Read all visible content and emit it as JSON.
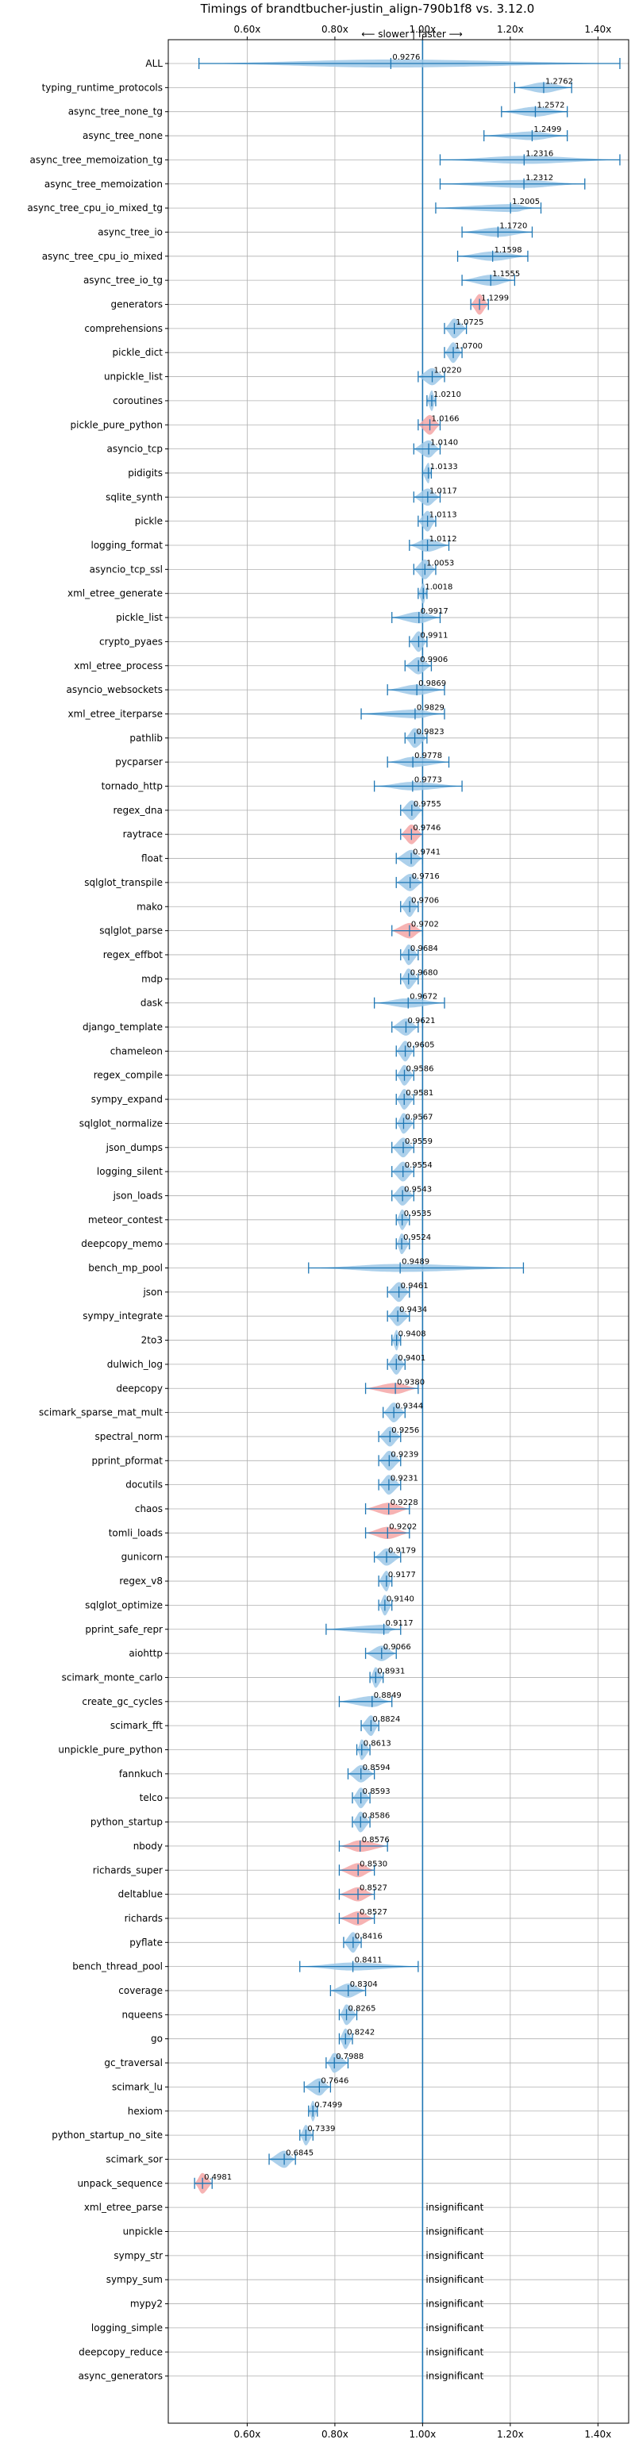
{
  "chart_data": {
    "type": "violin",
    "title": "Timings of brandtbucher-justin_align-790b1f8 vs. 3.12.0",
    "direction_label": "⟵ slower | faster ⟶",
    "xlim": [
      0.42,
      1.47
    ],
    "x_ticks": [
      0.6,
      0.8,
      1.0,
      1.2,
      1.4
    ],
    "x_tick_labels": [
      "0.60x",
      "0.80x",
      "1.00x",
      "1.20x",
      "1.40x"
    ],
    "reference_line": 1.0,
    "grid": true,
    "colors": {
      "violin": "#9ec8e8",
      "violin_slower": "#f4a6a6",
      "bar": "#1f77b4",
      "axis_line": "#1f77b4"
    },
    "insignificant_label": "insignificant",
    "benchmarks": [
      {
        "name": "ALL",
        "mean": 0.9276,
        "lo": 0.49,
        "hi": 1.45,
        "color": "blue",
        "label": "0.9276"
      },
      {
        "name": "typing_runtime_protocols",
        "mean": 1.2762,
        "lo": 1.21,
        "hi": 1.34,
        "color": "blue",
        "label": "1.2762"
      },
      {
        "name": "async_tree_none_tg",
        "mean": 1.2572,
        "lo": 1.18,
        "hi": 1.33,
        "color": "blue",
        "label": "1.2572"
      },
      {
        "name": "async_tree_none",
        "mean": 1.2499,
        "lo": 1.14,
        "hi": 1.33,
        "color": "blue",
        "label": "1.2499"
      },
      {
        "name": "async_tree_memoization_tg",
        "mean": 1.2316,
        "lo": 1.04,
        "hi": 1.45,
        "color": "blue",
        "label": "1.2316"
      },
      {
        "name": "async_tree_memoization",
        "mean": 1.2312,
        "lo": 1.04,
        "hi": 1.37,
        "color": "blue",
        "label": "1.2312"
      },
      {
        "name": "async_tree_cpu_io_mixed_tg",
        "mean": 1.2005,
        "lo": 1.03,
        "hi": 1.27,
        "color": "blue",
        "label": "1.2005"
      },
      {
        "name": "async_tree_io",
        "mean": 1.172,
        "lo": 1.09,
        "hi": 1.25,
        "color": "blue",
        "label": "1.1720"
      },
      {
        "name": "async_tree_cpu_io_mixed",
        "mean": 1.1598,
        "lo": 1.08,
        "hi": 1.24,
        "color": "blue",
        "label": "1.1598"
      },
      {
        "name": "async_tree_io_tg",
        "mean": 1.1555,
        "lo": 1.09,
        "hi": 1.21,
        "color": "blue",
        "label": "1.1555"
      },
      {
        "name": "generators",
        "mean": 1.1299,
        "lo": 1.11,
        "hi": 1.15,
        "color": "red",
        "label": "1.1299"
      },
      {
        "name": "comprehensions",
        "mean": 1.0725,
        "lo": 1.05,
        "hi": 1.1,
        "color": "blue",
        "label": "1.0725"
      },
      {
        "name": "pickle_dict",
        "mean": 1.07,
        "lo": 1.05,
        "hi": 1.09,
        "color": "blue",
        "label": "1.0700"
      },
      {
        "name": "unpickle_list",
        "mean": 1.022,
        "lo": 0.99,
        "hi": 1.05,
        "color": "blue",
        "label": "1.0220"
      },
      {
        "name": "coroutines",
        "mean": 1.021,
        "lo": 1.01,
        "hi": 1.03,
        "color": "blue",
        "label": "1.0210"
      },
      {
        "name": "pickle_pure_python",
        "mean": 1.0166,
        "lo": 0.99,
        "hi": 1.04,
        "color": "red",
        "label": "1.0166"
      },
      {
        "name": "asyncio_tcp",
        "mean": 1.014,
        "lo": 0.98,
        "hi": 1.04,
        "color": "blue",
        "label": "1.0140"
      },
      {
        "name": "pidigits",
        "mean": 1.0133,
        "lo": 1.0,
        "hi": 1.02,
        "color": "blue",
        "label": "1.0133"
      },
      {
        "name": "sqlite_synth",
        "mean": 1.0117,
        "lo": 0.98,
        "hi": 1.04,
        "color": "blue",
        "label": "1.0117"
      },
      {
        "name": "pickle",
        "mean": 1.0113,
        "lo": 0.99,
        "hi": 1.03,
        "color": "blue",
        "label": "1.0113"
      },
      {
        "name": "logging_format",
        "mean": 1.0112,
        "lo": 0.97,
        "hi": 1.06,
        "color": "blue",
        "label": "1.0112"
      },
      {
        "name": "asyncio_tcp_ssl",
        "mean": 1.0053,
        "lo": 0.98,
        "hi": 1.03,
        "color": "blue",
        "label": "1.0053"
      },
      {
        "name": "xml_etree_generate",
        "mean": 1.0018,
        "lo": 0.99,
        "hi": 1.01,
        "color": "blue",
        "label": "1.0018"
      },
      {
        "name": "pickle_list",
        "mean": 0.9917,
        "lo": 0.93,
        "hi": 1.04,
        "color": "blue",
        "label": "0.9917"
      },
      {
        "name": "crypto_pyaes",
        "mean": 0.9911,
        "lo": 0.97,
        "hi": 1.01,
        "color": "blue",
        "label": "0.9911"
      },
      {
        "name": "xml_etree_process",
        "mean": 0.9906,
        "lo": 0.96,
        "hi": 1.02,
        "color": "blue",
        "label": "0.9906"
      },
      {
        "name": "asyncio_websockets",
        "mean": 0.9869,
        "lo": 0.92,
        "hi": 1.05,
        "color": "blue",
        "label": "0.9869"
      },
      {
        "name": "xml_etree_iterparse",
        "mean": 0.9829,
        "lo": 0.86,
        "hi": 1.05,
        "color": "blue",
        "label": "0.9829"
      },
      {
        "name": "pathlib",
        "mean": 0.9823,
        "lo": 0.96,
        "hi": 1.01,
        "color": "blue",
        "label": "0.9823"
      },
      {
        "name": "pycparser",
        "mean": 0.9778,
        "lo": 0.92,
        "hi": 1.06,
        "color": "blue",
        "label": "0.9778"
      },
      {
        "name": "tornado_http",
        "mean": 0.9773,
        "lo": 0.89,
        "hi": 1.09,
        "color": "blue",
        "label": "0.9773"
      },
      {
        "name": "regex_dna",
        "mean": 0.9755,
        "lo": 0.95,
        "hi": 1.0,
        "color": "blue",
        "label": "0.9755"
      },
      {
        "name": "raytrace",
        "mean": 0.9746,
        "lo": 0.95,
        "hi": 1.0,
        "color": "red",
        "label": "0.9746"
      },
      {
        "name": "float",
        "mean": 0.9741,
        "lo": 0.94,
        "hi": 1.0,
        "color": "blue",
        "label": "0.9741"
      },
      {
        "name": "sqlglot_transpile",
        "mean": 0.9716,
        "lo": 0.94,
        "hi": 1.0,
        "color": "blue",
        "label": "0.9716"
      },
      {
        "name": "mako",
        "mean": 0.9706,
        "lo": 0.95,
        "hi": 0.99,
        "color": "blue",
        "label": "0.9706"
      },
      {
        "name": "sqlglot_parse",
        "mean": 0.9702,
        "lo": 0.93,
        "hi": 1.0,
        "color": "red",
        "label": "0.9702"
      },
      {
        "name": "regex_effbot",
        "mean": 0.9684,
        "lo": 0.95,
        "hi": 0.99,
        "color": "blue",
        "label": "0.9684"
      },
      {
        "name": "mdp",
        "mean": 0.968,
        "lo": 0.95,
        "hi": 0.99,
        "color": "blue",
        "label": "0.9680"
      },
      {
        "name": "dask",
        "mean": 0.9672,
        "lo": 0.89,
        "hi": 1.05,
        "color": "blue",
        "label": "0.9672"
      },
      {
        "name": "django_template",
        "mean": 0.9621,
        "lo": 0.93,
        "hi": 0.99,
        "color": "blue",
        "label": "0.9621"
      },
      {
        "name": "chameleon",
        "mean": 0.9605,
        "lo": 0.94,
        "hi": 0.98,
        "color": "blue",
        "label": "0.9605"
      },
      {
        "name": "regex_compile",
        "mean": 0.9586,
        "lo": 0.94,
        "hi": 0.98,
        "color": "blue",
        "label": "0.9586"
      },
      {
        "name": "sympy_expand",
        "mean": 0.9581,
        "lo": 0.94,
        "hi": 0.98,
        "color": "blue",
        "label": "0.9581"
      },
      {
        "name": "sqlglot_normalize",
        "mean": 0.9567,
        "lo": 0.94,
        "hi": 0.98,
        "color": "blue",
        "label": "0.9567"
      },
      {
        "name": "json_dumps",
        "mean": 0.9559,
        "lo": 0.93,
        "hi": 0.98,
        "color": "blue",
        "label": "0.9559"
      },
      {
        "name": "logging_silent",
        "mean": 0.9554,
        "lo": 0.93,
        "hi": 0.98,
        "color": "blue",
        "label": "0.9554"
      },
      {
        "name": "json_loads",
        "mean": 0.9543,
        "lo": 0.93,
        "hi": 0.98,
        "color": "blue",
        "label": "0.9543"
      },
      {
        "name": "meteor_contest",
        "mean": 0.9535,
        "lo": 0.94,
        "hi": 0.97,
        "color": "blue",
        "label": "0.9535"
      },
      {
        "name": "deepcopy_memo",
        "mean": 0.9524,
        "lo": 0.94,
        "hi": 0.97,
        "color": "blue",
        "label": "0.9524"
      },
      {
        "name": "bench_mp_pool",
        "mean": 0.9489,
        "lo": 0.74,
        "hi": 1.23,
        "color": "blue",
        "label": "0.9489"
      },
      {
        "name": "json",
        "mean": 0.9461,
        "lo": 0.92,
        "hi": 0.97,
        "color": "blue",
        "label": "0.9461"
      },
      {
        "name": "sympy_integrate",
        "mean": 0.9434,
        "lo": 0.92,
        "hi": 0.97,
        "color": "blue",
        "label": "0.9434"
      },
      {
        "name": "2to3",
        "mean": 0.9408,
        "lo": 0.93,
        "hi": 0.95,
        "color": "blue",
        "label": "0.9408"
      },
      {
        "name": "dulwich_log",
        "mean": 0.9401,
        "lo": 0.92,
        "hi": 0.96,
        "color": "blue",
        "label": "0.9401"
      },
      {
        "name": "deepcopy",
        "mean": 0.938,
        "lo": 0.87,
        "hi": 0.99,
        "color": "red",
        "label": "0.9380"
      },
      {
        "name": "scimark_sparse_mat_mult",
        "mean": 0.9344,
        "lo": 0.91,
        "hi": 0.96,
        "color": "blue",
        "label": "0.9344"
      },
      {
        "name": "spectral_norm",
        "mean": 0.9256,
        "lo": 0.9,
        "hi": 0.95,
        "color": "blue",
        "label": "0.9256"
      },
      {
        "name": "pprint_pformat",
        "mean": 0.9239,
        "lo": 0.9,
        "hi": 0.95,
        "color": "blue",
        "label": "0.9239"
      },
      {
        "name": "docutils",
        "mean": 0.9231,
        "lo": 0.9,
        "hi": 0.95,
        "color": "blue",
        "label": "0.9231"
      },
      {
        "name": "chaos",
        "mean": 0.9228,
        "lo": 0.87,
        "hi": 0.97,
        "color": "red",
        "label": "0.9228"
      },
      {
        "name": "tomli_loads",
        "mean": 0.9202,
        "lo": 0.87,
        "hi": 0.97,
        "color": "red",
        "label": "0.9202"
      },
      {
        "name": "gunicorn",
        "mean": 0.9179,
        "lo": 0.89,
        "hi": 0.95,
        "color": "blue",
        "label": "0.9179"
      },
      {
        "name": "regex_v8",
        "mean": 0.9177,
        "lo": 0.9,
        "hi": 0.93,
        "color": "blue",
        "label": "0.9177"
      },
      {
        "name": "sqlglot_optimize",
        "mean": 0.914,
        "lo": 0.9,
        "hi": 0.93,
        "color": "blue",
        "label": "0.9140"
      },
      {
        "name": "pprint_safe_repr",
        "mean": 0.9117,
        "lo": 0.78,
        "hi": 0.95,
        "color": "blue",
        "label": "0.9117"
      },
      {
        "name": "aiohttp",
        "mean": 0.9066,
        "lo": 0.87,
        "hi": 0.94,
        "color": "blue",
        "label": "0.9066"
      },
      {
        "name": "scimark_monte_carlo",
        "mean": 0.8931,
        "lo": 0.88,
        "hi": 0.91,
        "color": "blue",
        "label": "0.8931"
      },
      {
        "name": "create_gc_cycles",
        "mean": 0.8849,
        "lo": 0.81,
        "hi": 0.93,
        "color": "blue",
        "label": "0.8849"
      },
      {
        "name": "scimark_fft",
        "mean": 0.8824,
        "lo": 0.86,
        "hi": 0.9,
        "color": "blue",
        "label": "0.8824"
      },
      {
        "name": "unpickle_pure_python",
        "mean": 0.8613,
        "lo": 0.85,
        "hi": 0.88,
        "color": "blue",
        "label": "0.8613"
      },
      {
        "name": "fannkuch",
        "mean": 0.8594,
        "lo": 0.83,
        "hi": 0.89,
        "color": "blue",
        "label": "0.8594"
      },
      {
        "name": "telco",
        "mean": 0.8593,
        "lo": 0.84,
        "hi": 0.88,
        "color": "blue",
        "label": "0.8593"
      },
      {
        "name": "python_startup",
        "mean": 0.8586,
        "lo": 0.84,
        "hi": 0.88,
        "color": "blue",
        "label": "0.8586"
      },
      {
        "name": "nbody",
        "mean": 0.8576,
        "lo": 0.81,
        "hi": 0.92,
        "color": "red",
        "label": "0.8576"
      },
      {
        "name": "richards_super",
        "mean": 0.853,
        "lo": 0.81,
        "hi": 0.89,
        "color": "red",
        "label": "0.8530"
      },
      {
        "name": "deltablue",
        "mean": 0.8527,
        "lo": 0.81,
        "hi": 0.89,
        "color": "red",
        "label": "0.8527"
      },
      {
        "name": "richards",
        "mean": 0.8527,
        "lo": 0.81,
        "hi": 0.89,
        "color": "red",
        "label": "0.8527"
      },
      {
        "name": "pyflate",
        "mean": 0.8416,
        "lo": 0.82,
        "hi": 0.86,
        "color": "blue",
        "label": "0.8416"
      },
      {
        "name": "bench_thread_pool",
        "mean": 0.8411,
        "lo": 0.72,
        "hi": 0.99,
        "color": "blue",
        "label": "0.8411"
      },
      {
        "name": "coverage",
        "mean": 0.8304,
        "lo": 0.79,
        "hi": 0.87,
        "color": "blue",
        "label": "0.8304"
      },
      {
        "name": "nqueens",
        "mean": 0.8265,
        "lo": 0.81,
        "hi": 0.85,
        "color": "blue",
        "label": "0.8265"
      },
      {
        "name": "go",
        "mean": 0.8242,
        "lo": 0.81,
        "hi": 0.84,
        "color": "blue",
        "label": "0.8242"
      },
      {
        "name": "gc_traversal",
        "mean": 0.7988,
        "lo": 0.78,
        "hi": 0.83,
        "color": "blue",
        "label": "0.7988"
      },
      {
        "name": "scimark_lu",
        "mean": 0.7646,
        "lo": 0.73,
        "hi": 0.79,
        "color": "blue",
        "label": "0.7646"
      },
      {
        "name": "hexiom",
        "mean": 0.7499,
        "lo": 0.74,
        "hi": 0.76,
        "color": "blue",
        "label": "0.7499"
      },
      {
        "name": "python_startup_no_site",
        "mean": 0.7339,
        "lo": 0.72,
        "hi": 0.75,
        "color": "blue",
        "label": "0.7339"
      },
      {
        "name": "scimark_sor",
        "mean": 0.6845,
        "lo": 0.65,
        "hi": 0.71,
        "color": "blue",
        "label": "0.6845"
      },
      {
        "name": "unpack_sequence",
        "mean": 0.4981,
        "lo": 0.48,
        "hi": 0.52,
        "color": "red",
        "label": "0.4981"
      },
      {
        "name": "xml_etree_parse",
        "mean": null,
        "insignificant": true
      },
      {
        "name": "unpickle",
        "mean": null,
        "insignificant": true
      },
      {
        "name": "sympy_str",
        "mean": null,
        "insignificant": true
      },
      {
        "name": "sympy_sum",
        "mean": null,
        "insignificant": true
      },
      {
        "name": "mypy2",
        "mean": null,
        "insignificant": true
      },
      {
        "name": "logging_simple",
        "mean": null,
        "insignificant": true
      },
      {
        "name": "deepcopy_reduce",
        "mean": null,
        "insignificant": true
      },
      {
        "name": "async_generators",
        "mean": null,
        "insignificant": true
      }
    ]
  }
}
